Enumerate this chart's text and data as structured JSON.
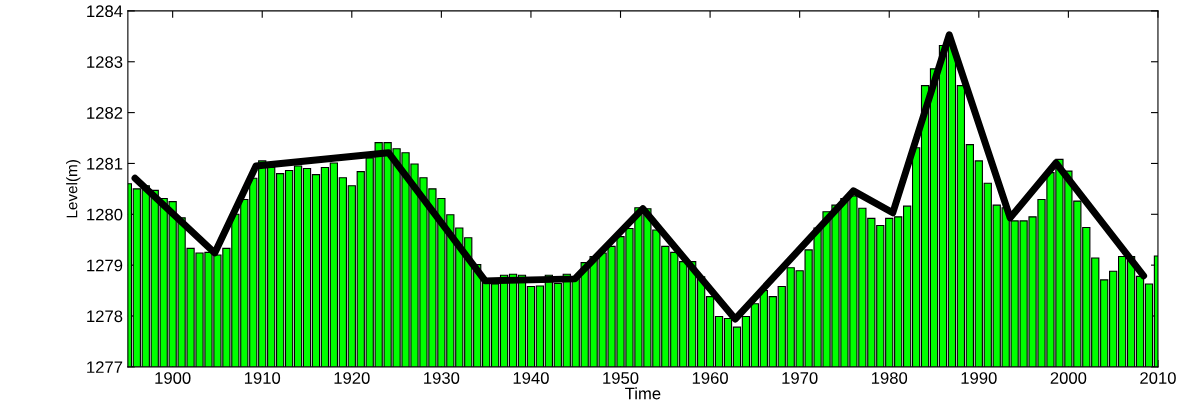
{
  "chart_data": {
    "type": "bar",
    "xlabel": "Time",
    "ylabel": "Level(m)",
    "x": [
      1895,
      1896,
      1897,
      1898,
      1899,
      1900,
      1901,
      1902,
      1903,
      1904,
      1905,
      1906,
      1907,
      1908,
      1909,
      1910,
      1911,
      1912,
      1913,
      1914,
      1915,
      1916,
      1917,
      1918,
      1919,
      1920,
      1921,
      1922,
      1923,
      1924,
      1925,
      1926,
      1927,
      1928,
      1929,
      1930,
      1931,
      1932,
      1933,
      1934,
      1935,
      1936,
      1937,
      1938,
      1939,
      1940,
      1941,
      1942,
      1943,
      1944,
      1945,
      1946,
      1947,
      1948,
      1949,
      1950,
      1951,
      1952,
      1953,
      1954,
      1955,
      1956,
      1957,
      1958,
      1959,
      1960,
      1961,
      1962,
      1963,
      1964,
      1965,
      1966,
      1967,
      1968,
      1969,
      1970,
      1971,
      1972,
      1973,
      1974,
      1975,
      1976,
      1977,
      1978,
      1979,
      1980,
      1981,
      1982,
      1983,
      1984,
      1985,
      1986,
      1987,
      1988,
      1989,
      1990,
      1991,
      1992,
      1993,
      1994,
      1995,
      1996,
      1997,
      1998,
      1999,
      2000,
      2001,
      2002,
      2003,
      2004,
      2005,
      2006,
      2007,
      2008,
      2009,
      2010
    ],
    "series": [
      {
        "color": "#00ff00",
        "values": [
          1280.6,
          1280.5,
          1280.56,
          1280.47,
          1280.31,
          1280.25,
          1279.93,
          1279.33,
          1279.24,
          1279.25,
          1279.2,
          1279.33,
          1280.0,
          1280.29,
          1280.71,
          1281.05,
          1280.92,
          1280.8,
          1280.86,
          1280.95,
          1280.9,
          1280.78,
          1280.92,
          1281.01,
          1280.72,
          1280.56,
          1280.84,
          1281.11,
          1281.41,
          1281.41,
          1281.29,
          1281.21,
          1280.99,
          1280.72,
          1280.5,
          1280.31,
          1279.99,
          1279.73,
          1279.54,
          1279.01,
          1278.73,
          1278.63,
          1278.8,
          1278.82,
          1278.8,
          1278.58,
          1278.59,
          1278.8,
          1278.64,
          1278.82,
          1278.76,
          1279.05,
          1279.17,
          1279.24,
          1279.37,
          1279.56,
          1279.72,
          1280.13,
          1280.11,
          1279.69,
          1279.37,
          1279.25,
          1279.07,
          1279.07,
          1278.77,
          1278.38,
          1277.99,
          1277.95,
          1277.78,
          1277.99,
          1278.24,
          1278.5,
          1278.38,
          1278.58,
          1278.95,
          1278.89,
          1279.3,
          1279.73,
          1280.05,
          1280.18,
          1280.31,
          1280.36,
          1280.12,
          1279.92,
          1279.78,
          1279.92,
          1279.95,
          1280.16,
          1281.31,
          1282.53,
          1282.86,
          1283.32,
          1283.32,
          1282.53,
          1281.37,
          1281.05,
          1280.61,
          1280.18,
          1280.13,
          1279.87,
          1279.87,
          1279.95,
          1280.29,
          1280.82,
          1281.08,
          1280.85,
          1280.26,
          1279.74,
          1279.14,
          1278.71,
          1278.88,
          1279.17,
          1279.17,
          1278.78,
          1278.63,
          1279.18
        ]
      },
      {
        "type": "line",
        "color": "#000000",
        "x": [
          1895.8,
          1904.7,
          1909.3,
          1924.1,
          1934.9,
          1944.9,
          1952.5,
          1962.8,
          1976.0,
          1980.4,
          1986.7,
          1993.5,
          1998.6,
          2008.4
        ],
        "values": [
          1280.71,
          1279.24,
          1280.95,
          1281.21,
          1278.69,
          1278.73,
          1280.11,
          1277.94,
          1280.46,
          1280.03,
          1283.53,
          1279.93,
          1281.01,
          1278.79
        ]
      }
    ],
    "xlim": [
      1895,
      2010
    ],
    "xticks": [
      1900,
      1910,
      1920,
      1930,
      1940,
      1950,
      1960,
      1970,
      1980,
      1990,
      2000,
      2010
    ],
    "ylim": [
      1277,
      1284
    ],
    "yticks": [
      1277,
      1278,
      1279,
      1280,
      1281,
      1282,
      1283,
      1284
    ],
    "grid": false,
    "legend": false
  }
}
